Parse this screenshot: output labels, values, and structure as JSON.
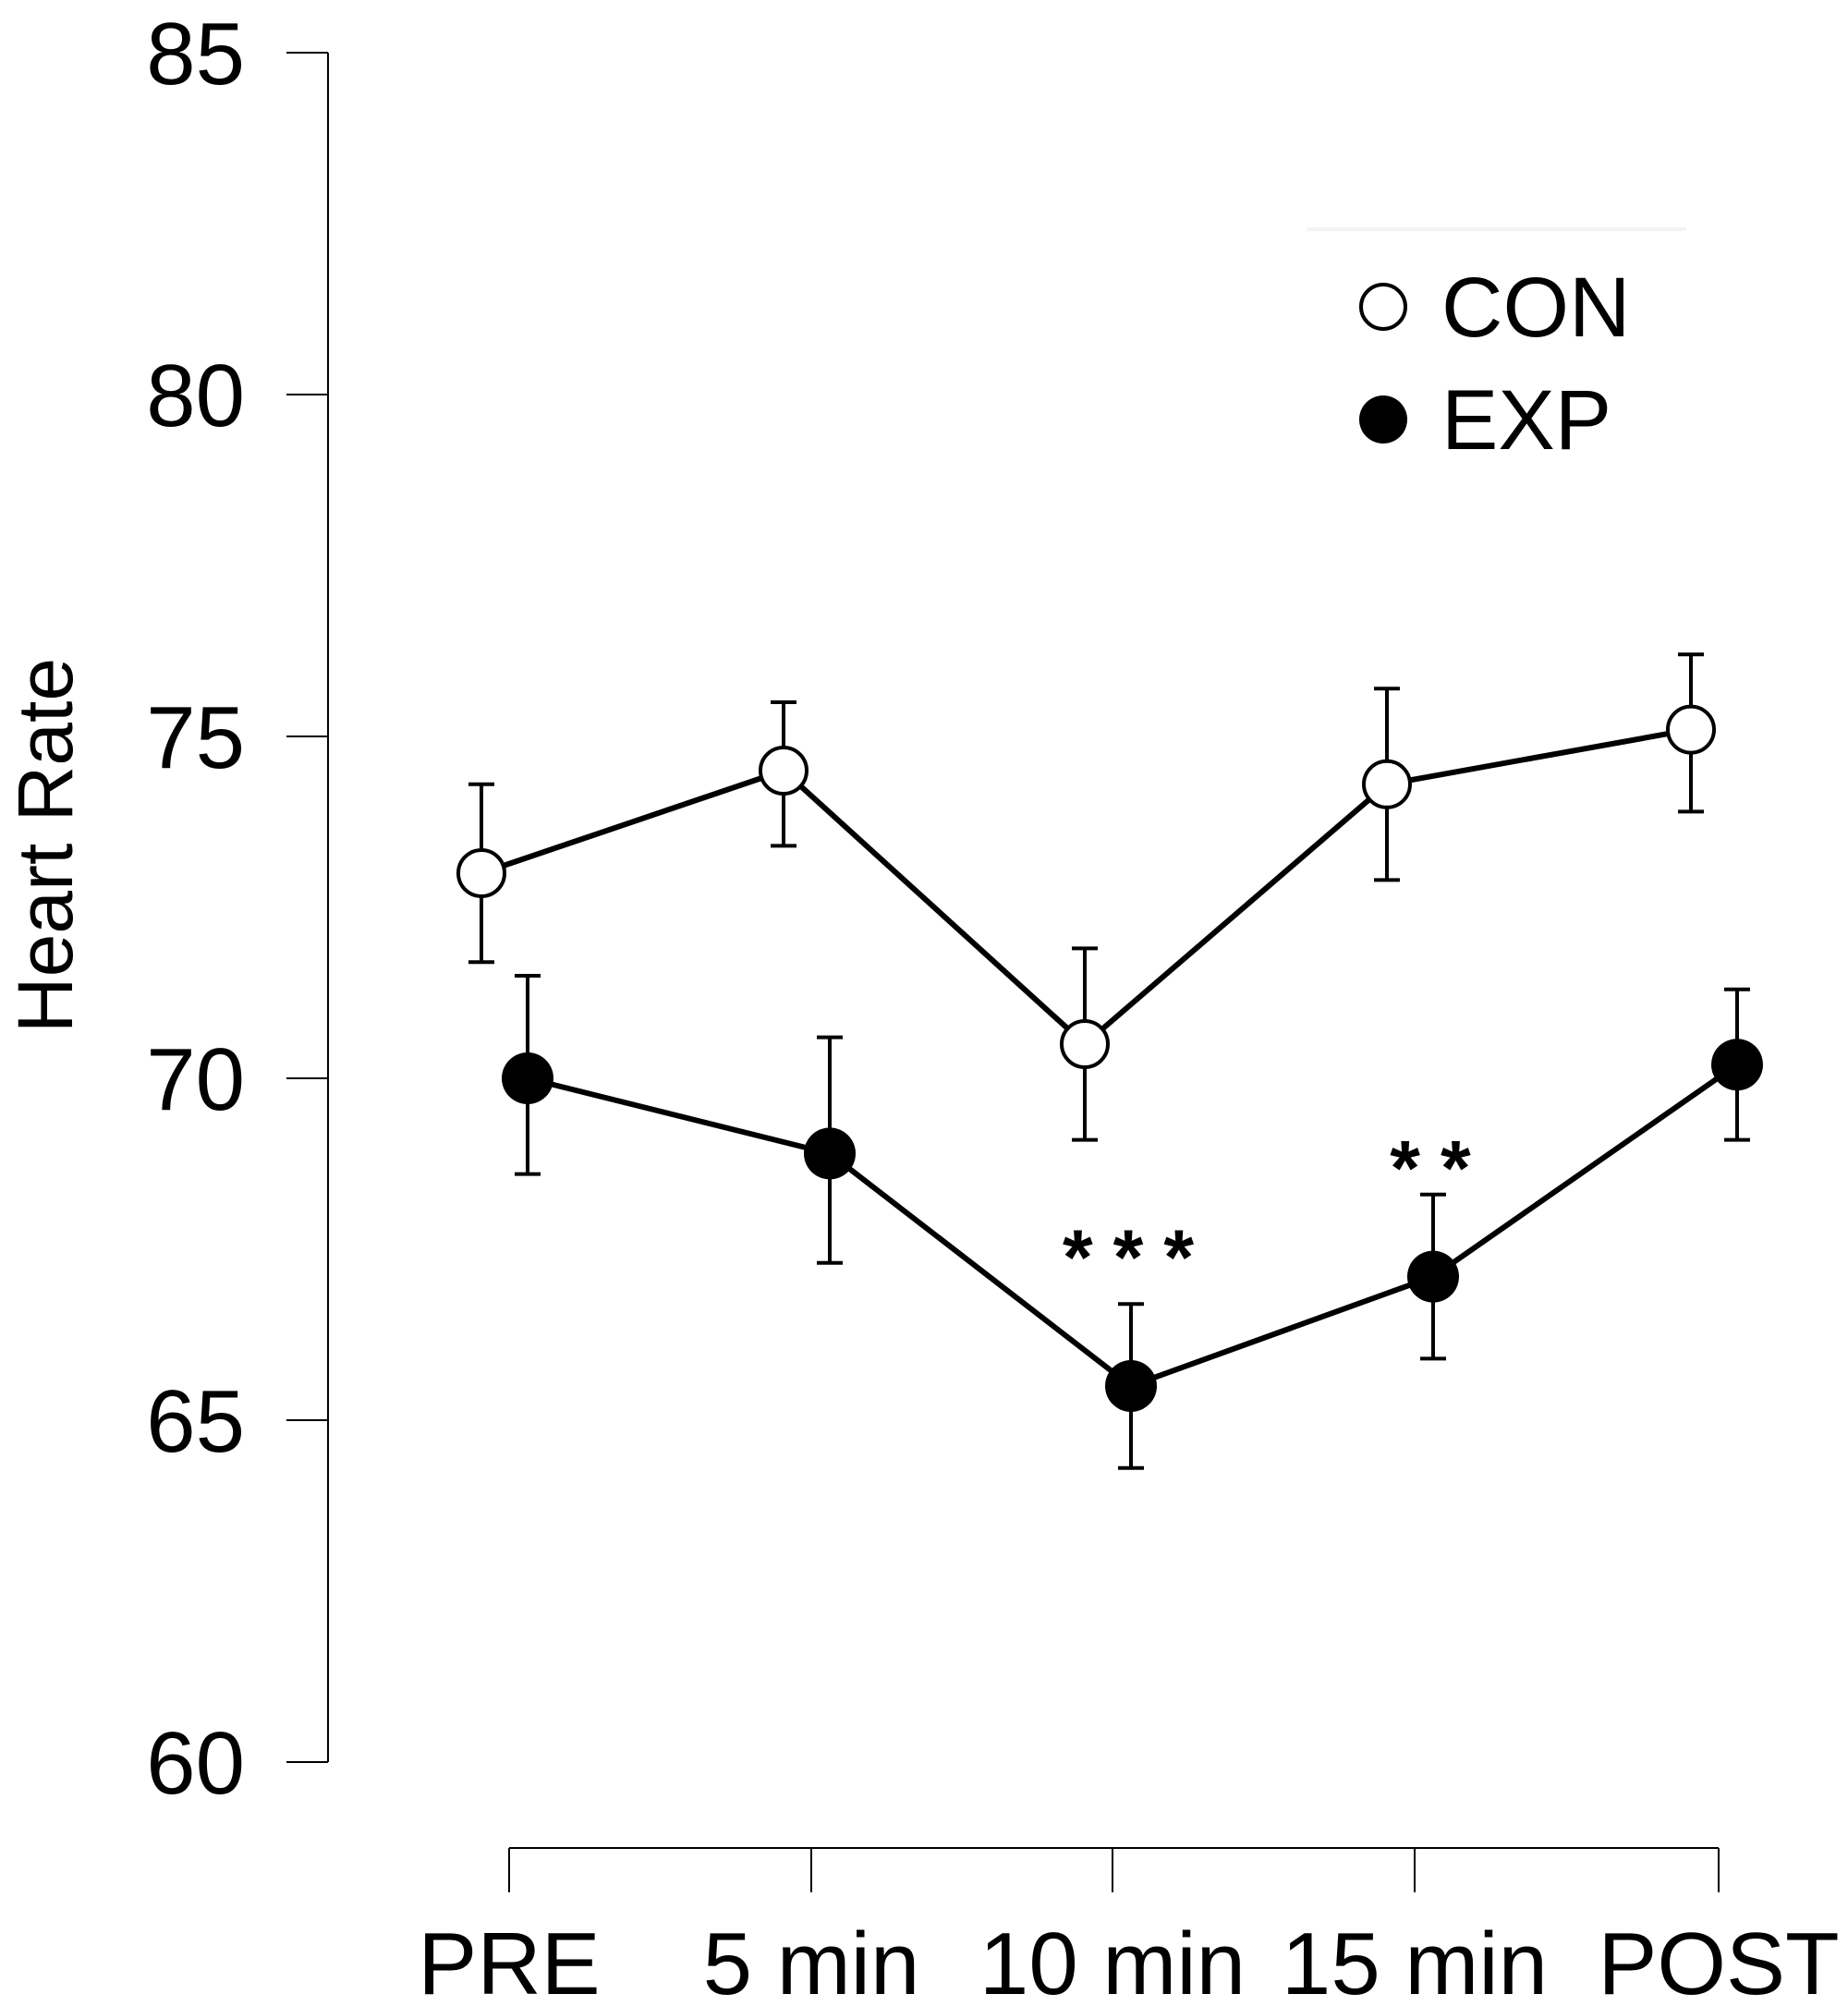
{
  "chart_data": {
    "type": "line",
    "title": "",
    "xlabel": "",
    "ylabel": "Heart Rate",
    "categories": [
      "PRE",
      "5 min",
      "10 min",
      "15 min",
      "POST"
    ],
    "ylim": [
      60,
      85
    ],
    "yticks": [
      60,
      65,
      70,
      75,
      80,
      85
    ],
    "grid": false,
    "legend_position": "top-right",
    "series": [
      {
        "name": "CON",
        "marker": "open-circle",
        "values": [
          73.0,
          74.5,
          70.5,
          74.3,
          75.1
        ],
        "err_low": [
          71.7,
          73.4,
          69.1,
          72.9,
          73.9
        ],
        "err_high": [
          74.3,
          75.5,
          71.9,
          75.7,
          76.2
        ]
      },
      {
        "name": "EXP",
        "marker": "filled-circle",
        "values": [
          70.0,
          68.9,
          65.5,
          67.1,
          70.2
        ],
        "err_low": [
          68.6,
          67.3,
          64.3,
          65.9,
          69.1
        ],
        "err_high": [
          71.5,
          70.6,
          66.7,
          68.3,
          71.3
        ]
      }
    ],
    "annotations": [
      {
        "category_index": 2,
        "text": "***",
        "value": 67.4
      },
      {
        "category_index": 3,
        "text": "**",
        "value": 68.7
      }
    ]
  }
}
